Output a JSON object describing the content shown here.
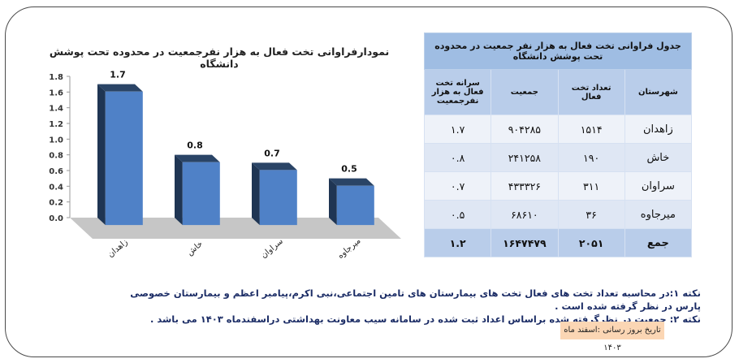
{
  "chart_data": {
    "type": "bar",
    "title": "نمودارفراوانی تخت فعال به هزار نفرجمعیت در محدوده تحت پوشش دانشگاه",
    "categories": [
      "زاهدان",
      "خاش",
      "سراوان",
      "میرجاوه"
    ],
    "values": [
      1.7,
      0.8,
      0.7,
      0.5
    ],
    "value_labels": [
      "1.7",
      "0.8",
      "0.7",
      "0.5"
    ],
    "ylim": [
      0,
      1.8
    ],
    "yticks": [
      "0.0",
      "0.2",
      "0.4",
      "0.6",
      "0.8",
      "1.0",
      "1.2",
      "1.4",
      "1.6",
      "1.8"
    ],
    "xlabel": "",
    "ylabel": "",
    "grid": false,
    "colors": {
      "bar_front": "#4f81c7",
      "bar_side": "#1f3553",
      "bar_top": "#2a4466",
      "floor": "#c6c6c6"
    }
  },
  "table": {
    "caption": "جدول فراوانی تخت فعال به هزار نفر جمعیت در محدوده تحت پوشش دانشگاه",
    "headers": [
      "شهرستان",
      "تعداد تخت فعال",
      "جمعیت",
      "سرانه تخت فعال به هزار نفرجمعیت"
    ],
    "rows": [
      [
        "زاهدان",
        "۱۵۱۴",
        "۹۰۴۲۸۵",
        "۱.۷"
      ],
      [
        "خاش",
        "۱۹۰",
        "۲۴۱۲۵۸",
        "۰.۸"
      ],
      [
        "سراوان",
        "۳۱۱",
        "۴۳۳۳۲۶",
        "۰.۷"
      ],
      [
        "میرجاوه",
        "۳۶",
        "۶۸۶۱۰",
        "۰.۵"
      ]
    ],
    "total": [
      "جمع",
      "۲۰۵۱",
      "۱۶۴۷۴۷۹",
      "۱.۲"
    ]
  },
  "notes": [
    "نکته ۱:در محاسبه تعداد تخت های فعال تخت های بیمارستان های تامین اجتماعی،نبی اکرم،پیامبر اعظم و بیمارستان خصوصی پارس در نظر گرفته شده است .",
    "نکته ۲: جمعیت در نظرگرفته شده براساس اعداد ثبت شده در سامانه سیب معاونت بهداشتی دراسفندماه ۱۴۰۳ می باشد ."
  ],
  "update_date": "تاریخ بروز رسانی :اسفند ماه ۱۴۰۳"
}
